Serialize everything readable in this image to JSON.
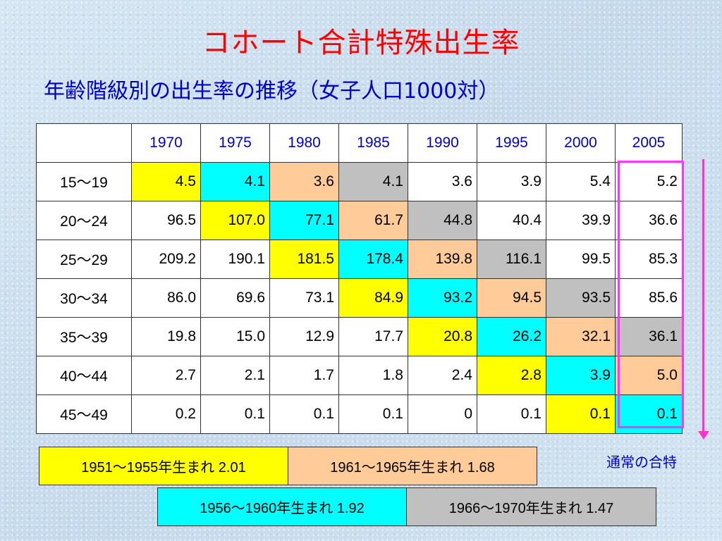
{
  "title": "コホート合計特殊出生率",
  "subtitle": "年齢階級別の出生率の推移（女子人口1000対）",
  "table": {
    "corner": "",
    "years": [
      "1970",
      "1975",
      "1980",
      "1985",
      "1990",
      "1995",
      "2000",
      "2005"
    ],
    "rows": [
      {
        "age": "15〜19",
        "values": [
          "4.5",
          "4.1",
          "3.6",
          "4.1",
          "3.6",
          "3.9",
          "5.4",
          "5.2"
        ]
      },
      {
        "age": "20〜24",
        "values": [
          "96.5",
          "107.0",
          "77.1",
          "61.7",
          "44.8",
          "40.4",
          "39.9",
          "36.6"
        ]
      },
      {
        "age": "25〜29",
        "values": [
          "209.2",
          "190.1",
          "181.5",
          "178.4",
          "139.8",
          "116.1",
          "99.5",
          "85.3"
        ]
      },
      {
        "age": "30〜34",
        "values": [
          "86.0",
          "69.6",
          "73.1",
          "84.9",
          "93.2",
          "94.5",
          "93.5",
          "85.6"
        ]
      },
      {
        "age": "35〜39",
        "values": [
          "19.8",
          "15.0",
          "12.9",
          "17.7",
          "20.8",
          "26.2",
          "32.1",
          "36.1"
        ]
      },
      {
        "age": "40〜44",
        "values": [
          "2.7",
          "2.1",
          "1.7",
          "1.8",
          "2.4",
          "2.8",
          "3.9",
          "5.0"
        ]
      },
      {
        "age": "45〜49",
        "values": [
          "0.2",
          "0.1",
          "0.1",
          "0.1",
          "0",
          "0.1",
          "0.1",
          "0.1"
        ]
      }
    ]
  },
  "colors": {
    "yellow": "#ffff00",
    "cyan": "#00ffff",
    "peach": "#ffcc99",
    "gray": "#c0c0c0",
    "highlight": "#ff33ff",
    "title": "#ff0000",
    "subtitle": "#0000cc"
  },
  "note": "通常の合特",
  "legend": [
    {
      "label": "1951〜1955年生まれ  2.01",
      "color": "yellow"
    },
    {
      "label": "1961〜1965年生まれ  1.68",
      "color": "peach"
    },
    {
      "label": "1956〜1960年生まれ  1.92",
      "color": "cyan"
    },
    {
      "label": "1966〜1970年生まれ  1.47",
      "color": "gray"
    }
  ]
}
